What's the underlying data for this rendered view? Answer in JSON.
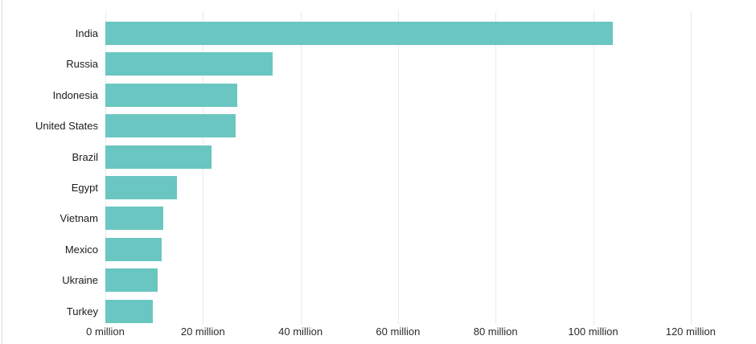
{
  "chart_data": {
    "type": "bar",
    "orientation": "horizontal",
    "title": "",
    "xlabel": "",
    "ylabel": "",
    "value_unit": "million",
    "categories": [
      "India",
      "Russia",
      "Indonesia",
      "United States",
      "Brazil",
      "Egypt",
      "Vietnam",
      "Mexico",
      "Ukraine",
      "Turkey"
    ],
    "values": [
      104,
      34.3,
      27.1,
      26.7,
      21.7,
      14.7,
      11.8,
      11.6,
      10.7,
      9.8
    ],
    "x_ticks": [
      0,
      20,
      40,
      60,
      80,
      100,
      120
    ],
    "x_tick_labels": [
      "0 million",
      "20 million",
      "40 million",
      "60 million",
      "80 million",
      "100 million",
      "120 million"
    ],
    "xlim": [
      0,
      123.66
    ],
    "grid": true,
    "legend": false,
    "bar_color": "#6ac6c1",
    "gridline_color": "#eaeaea",
    "category_label_color": "#1c1c1c",
    "tick_label_color": "#2b2b2b",
    "background_color": "#ffffff",
    "left_edge_line_color": "#dcdcdc"
  }
}
